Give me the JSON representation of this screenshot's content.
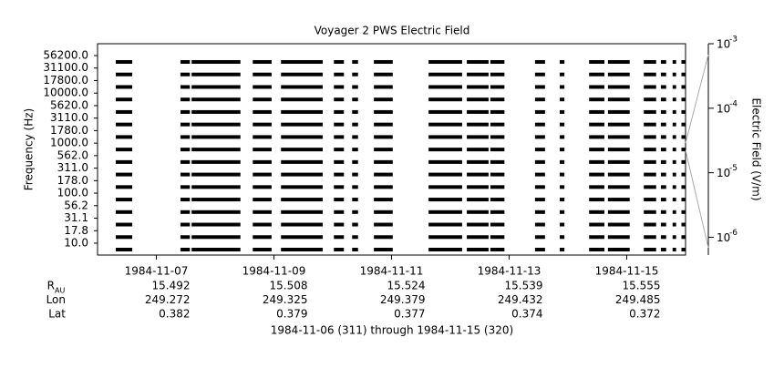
{
  "chart_data": {
    "type": "channel-coverage",
    "title": "Voyager 2 PWS Electric Field",
    "y_label": "Frequency (Hz)",
    "y2_label": "Electric Field (V/m)",
    "footer": "1984-11-06 (311) through 1984-11-15 (320)",
    "channels": [
      "10.0",
      "17.8",
      "31.1",
      "56.2",
      "100.0",
      "178.0",
      "311.0",
      "562.0",
      "1000.0",
      "1780.0",
      "3110.0",
      "5620.0",
      "10000.0",
      "17800.0",
      "31100.0",
      "56200.0"
    ],
    "xlim": [
      0,
      10
    ],
    "xticks": [
      {
        "value": 1,
        "label": "1984-11-07"
      },
      {
        "value": 3,
        "label": "1984-11-09"
      },
      {
        "value": 5,
        "label": "1984-11-11"
      },
      {
        "value": 7,
        "label": "1984-11-13"
      },
      {
        "value": 9,
        "label": "1984-11-15"
      }
    ],
    "coverage": [
      [
        0.31,
        0.59
      ],
      [
        1.41,
        1.57
      ],
      [
        1.6,
        2.43
      ],
      [
        2.64,
        2.96
      ],
      [
        3.12,
        3.83
      ],
      [
        4.02,
        4.19
      ],
      [
        4.33,
        4.43
      ],
      [
        4.7,
        5.02
      ],
      [
        5.63,
        6.2
      ],
      [
        6.28,
        6.65
      ],
      [
        6.68,
        6.92
      ],
      [
        7.44,
        7.61
      ],
      [
        7.86,
        7.94
      ],
      [
        8.36,
        8.62
      ],
      [
        8.68,
        9.05
      ],
      [
        9.29,
        9.5
      ],
      [
        9.58,
        9.67
      ],
      [
        9.78,
        9.84
      ],
      [
        9.93,
        10
      ]
    ],
    "y2lim": [
      5.3e-07,
      0.001
    ],
    "y2log": true,
    "y2ticks": [
      {
        "value": 0.001,
        "label": "10",
        "exponent": "-3"
      },
      {
        "value": 0.0001,
        "label": "10",
        "exponent": "-4"
      },
      {
        "value": 1e-05,
        "label": "10",
        "exponent": "-5"
      },
      {
        "value": 1e-06,
        "label": "10",
        "exponent": "-6"
      }
    ],
    "color": "#000000",
    "ephemeris": [
      {
        "label": "R",
        "subscript": "AU",
        "values": [
          "15.492",
          "15.508",
          "15.524",
          "15.539",
          "15.555"
        ]
      },
      {
        "label": "Lon",
        "values": [
          "249.272",
          "249.325",
          "249.379",
          "249.432",
          "249.485"
        ]
      },
      {
        "label": "Lat",
        "values": [
          "0.382",
          "0.379",
          "0.377",
          "0.374",
          "0.372"
        ]
      }
    ]
  }
}
